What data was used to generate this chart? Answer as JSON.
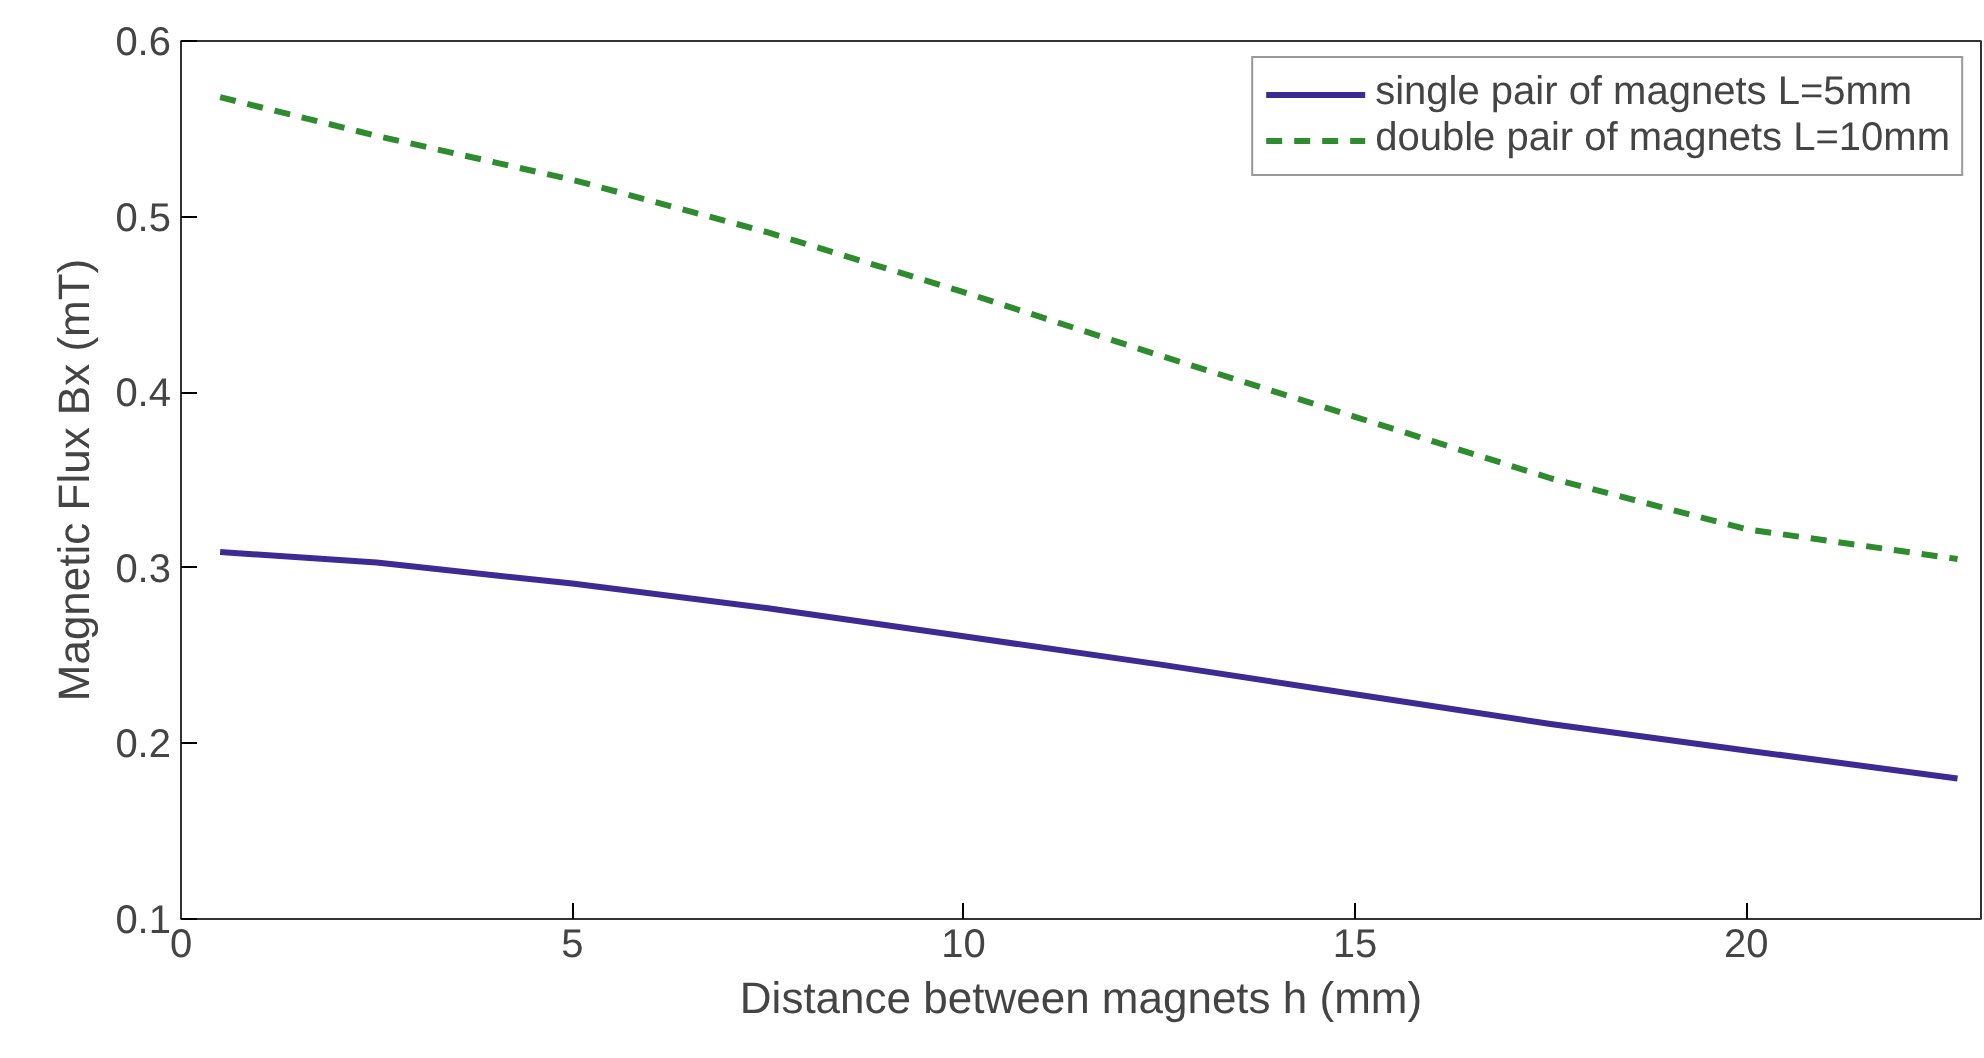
{
  "chart_data": {
    "type": "line",
    "xlabel": "Distance between magnets h (mm)",
    "ylabel": "Magnetic Flux Bx (mT)",
    "xlim": [
      0,
      23
    ],
    "xticks": [
      0,
      5,
      10,
      15,
      20
    ],
    "ylim": [
      0.1,
      0.6
    ],
    "yticks": [
      0.1,
      0.2,
      0.3,
      0.4,
      0.5,
      0.6
    ],
    "x": [
      0.5,
      2.5,
      5,
      7.5,
      10,
      12.5,
      15,
      17.5,
      20,
      22.7
    ],
    "series": [
      {
        "name": "single pair of magnets L=5mm",
        "color": "#3d2a93",
        "line_style": "solid",
        "values": [
          0.309,
          0.303,
          0.291,
          0.277,
          0.261,
          0.245,
          0.228,
          0.211,
          0.196,
          0.18
        ]
      },
      {
        "name": "double pair of magnets L=10mm",
        "color": "#2e8b2e",
        "line_style": "dashed",
        "values": [
          0.568,
          0.546,
          0.521,
          0.491,
          0.457,
          0.421,
          0.386,
          0.351,
          0.322,
          0.305
        ]
      }
    ],
    "grid": false,
    "legend": "top right"
  }
}
